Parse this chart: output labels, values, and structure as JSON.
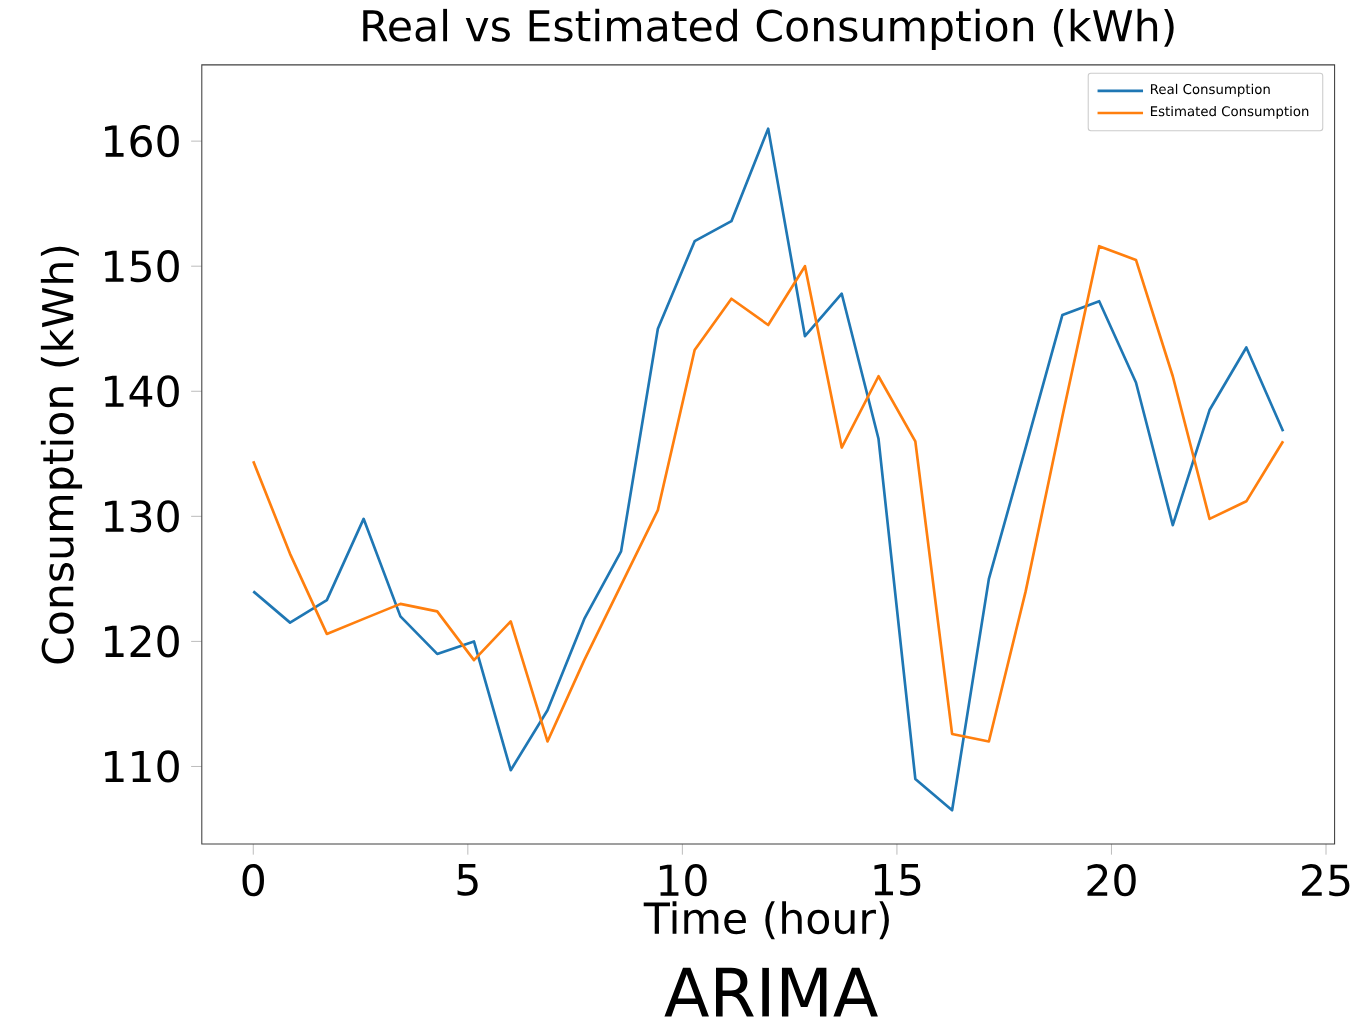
{
  "chart_data": {
    "type": "line",
    "title": "Real vs Estimated Consumption (kWh)",
    "xlabel": "Time (hour)",
    "ylabel": "Consumption (kWh)",
    "annotations": [
      "ARIMA"
    ],
    "x": [
      0,
      0.857,
      1.714,
      2.571,
      3.429,
      4.286,
      5.143,
      6,
      6.857,
      7.714,
      8.571,
      9.429,
      10.286,
      11.143,
      12,
      12.857,
      13.714,
      14.571,
      15.429,
      16.286,
      17.143,
      18,
      18.857,
      19.714,
      20.571,
      21.429,
      22.286,
      23.143,
      24
    ],
    "series": [
      {
        "name": "Real Consumption",
        "color": "#1f77b4",
        "values": [
          124,
          121.5,
          123.3,
          129.8,
          122,
          119,
          120,
          109.7,
          114.5,
          121.8,
          127.2,
          145,
          152,
          153.6,
          161,
          144.4,
          147.8,
          136.2,
          109,
          106.5,
          125,
          135.5,
          146.1,
          147.2,
          140.7,
          129.3,
          138.5,
          143.5,
          136.8
        ]
      },
      {
        "name": "Estimated Consumption",
        "color": "#ff7f0e",
        "values": [
          134.4,
          127,
          120.6,
          121.8,
          123,
          122.4,
          118.5,
          121.6,
          112,
          118.5,
          124.5,
          130.5,
          143.3,
          147.4,
          145.3,
          150,
          135.5,
          141.2,
          136,
          112.6,
          112,
          124,
          138,
          151.6,
          150.5,
          141.2,
          129.8,
          131.2,
          136
        ]
      }
    ],
    "xlim": [
      -1.2,
      25.2
    ],
    "ylim": [
      103.8,
      166.1
    ],
    "xticks": [
      0,
      5,
      10,
      15,
      20,
      25
    ],
    "yticks": [
      110,
      120,
      130,
      140,
      150,
      160
    ],
    "legend": "top right",
    "grid": false,
    "marker": "none",
    "line_style": "solid"
  }
}
